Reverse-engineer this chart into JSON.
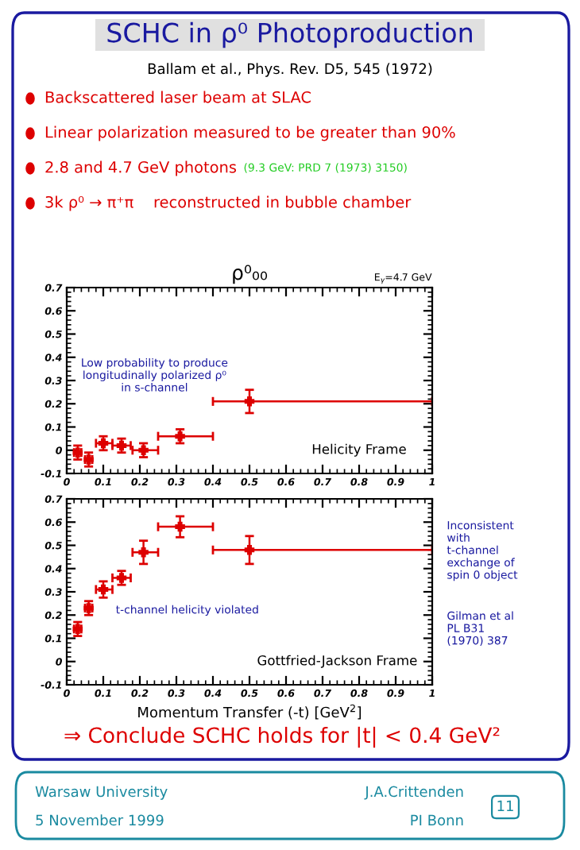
{
  "chart_data": [
    {
      "type": "other",
      "title": "SCHC in ρ⁰ Photoproduction",
      "subtitle": "Ballam et al., Phys. Rev. D5, 545 (1972)",
      "annotations": [
        "Backscattered laser beam at SLAC",
        "Linear polarization measured to be greater than 90%",
        "2.8 and 4.7 GeV photons",
        "(9.3 GeV: PRD 7 (1973) 3150)",
        "3k ρ⁰ → π⁺π    reconstructed in bubble chamber",
        "⇒ Conclude SCHC holds for |t| < 0.4 GeV²",
        "Warsaw University",
        "5 November 1999",
        "J.A.Crittenden",
        "PI Bonn",
        "11"
      ]
    },
    {
      "type": "scatter",
      "title": "ρ⁰₀₀",
      "subtitle": "E$_{γ}$=4.7 GeV",
      "marker": "cross",
      "series": [
        {
          "color": "#dd0000",
          "x": [
            0.03,
            0.06,
            0.1,
            0.15,
            0.21,
            0.31,
            0.5
          ],
          "values": [
            -0.01,
            -0.04,
            0.03,
            0.02,
            0.0,
            0.06,
            0.21
          ],
          "errors": [
            0.03,
            0.03,
            0.03,
            0.03,
            0.03,
            0.03,
            0.05
          ],
          "xerrors": [
            [
              0.02,
              0.04
            ],
            [
              0.05,
              0.07
            ],
            [
              0.08,
              0.125
            ],
            [
              0.125,
              0.175
            ],
            [
              0.18,
              0.25
            ],
            [
              0.25,
              0.4
            ],
            [
              0.4,
              1.0
            ]
          ]
        }
      ],
      "xlim": [
        0,
        1
      ],
      "xticks": [
        0,
        0.1,
        0.2,
        0.3,
        0.4,
        0.5,
        0.6,
        0.7,
        0.8,
        0.9,
        1
      ],
      "ylim": [
        -0.1,
        0.7
      ],
      "yticks": [
        -0.1,
        0,
        0.1,
        0.2,
        0.3,
        0.4,
        0.5,
        0.6,
        0.7
      ],
      "annotations": [
        "Low probability to produce\nlongitudinally polarized ρ⁰\nin s-channel",
        "Helicity Frame"
      ]
    },
    {
      "type": "scatter",
      "marker": "cross",
      "xlabel": "Momentum Transfer (-t) [GeV$^{2}$]",
      "series": [
        {
          "color": "#dd0000",
          "x": [
            0.03,
            0.06,
            0.1,
            0.15,
            0.21,
            0.31,
            0.5
          ],
          "values": [
            0.14,
            0.23,
            0.31,
            0.36,
            0.47,
            0.58,
            0.48
          ],
          "errors": [
            0.03,
            0.03,
            0.035,
            0.03,
            0.05,
            0.045,
            0.06
          ],
          "xerrors": [
            [
              0.02,
              0.04
            ],
            [
              0.05,
              0.07
            ],
            [
              0.08,
              0.125
            ],
            [
              0.125,
              0.175
            ],
            [
              0.18,
              0.25
            ],
            [
              0.25,
              0.4
            ],
            [
              0.4,
              1.0
            ]
          ]
        }
      ],
      "xlim": [
        0,
        1
      ],
      "xticks": [
        0,
        0.1,
        0.2,
        0.3,
        0.4,
        0.5,
        0.6,
        0.7,
        0.8,
        0.9,
        1
      ],
      "ylim": [
        -0.1,
        0.7
      ],
      "yticks": [
        -0.1,
        0,
        0.1,
        0.2,
        0.3,
        0.4,
        0.5,
        0.6,
        0.7
      ],
      "annotations": [
        "t-channel helicity violated",
        "Gottfried-Jackson Frame",
        "Inconsistent\nwith\nt-channel\nexchange of\nspin 0 object",
        "Gilman et al\nPL B31\n(1970) 387"
      ]
    }
  ]
}
